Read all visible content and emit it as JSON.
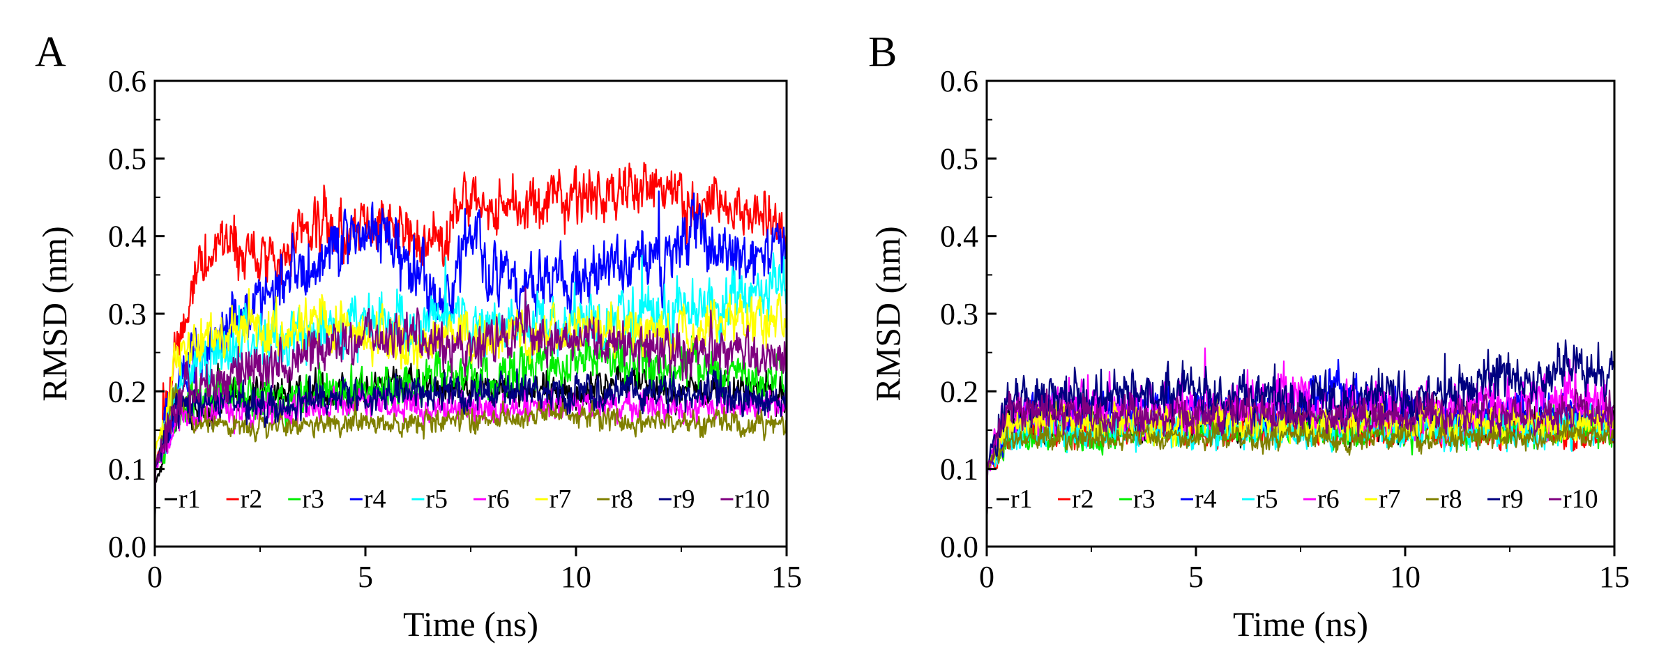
{
  "chart_data": [
    {
      "panel": "A",
      "type": "line",
      "xlabel": "Time (ns)",
      "ylabel": "RMSD (nm)",
      "xlim": [
        0,
        15
      ],
      "ylim": [
        0.0,
        0.6
      ],
      "xticks": [
        0,
        5,
        10,
        15
      ],
      "yticks": [
        0.0,
        0.1,
        0.2,
        0.3,
        0.4,
        0.5,
        0.6
      ],
      "ytick_labels": [
        "0.0",
        "0.1",
        "0.2",
        "0.3",
        "0.4",
        "0.5",
        "0.6"
      ],
      "legend_position": "bottom",
      "series": [
        {
          "name": "r1",
          "color": "#000000",
          "x": [
            0,
            0.5,
            1,
            2,
            3,
            4,
            5,
            6,
            7,
            8,
            9,
            10,
            11,
            12,
            13,
            14,
            15
          ],
          "values": [
            0.08,
            0.17,
            0.18,
            0.19,
            0.2,
            0.2,
            0.2,
            0.21,
            0.2,
            0.21,
            0.2,
            0.2,
            0.21,
            0.2,
            0.2,
            0.2,
            0.2
          ],
          "noise": 0.03
        },
        {
          "name": "r2",
          "color": "#ff0000",
          "x": [
            0,
            0.5,
            1,
            1.5,
            2,
            3,
            4,
            5,
            6,
            7,
            7.3,
            8,
            9,
            10,
            11,
            12,
            13,
            14,
            15
          ],
          "values": [
            0.1,
            0.25,
            0.36,
            0.4,
            0.38,
            0.38,
            0.42,
            0.41,
            0.4,
            0.39,
            0.45,
            0.44,
            0.44,
            0.45,
            0.46,
            0.46,
            0.44,
            0.44,
            0.42
          ],
          "noise": 0.045
        },
        {
          "name": "r3",
          "color": "#00ee00",
          "x": [
            0,
            0.5,
            1,
            2,
            3,
            4,
            5,
            6,
            7,
            8,
            9,
            10,
            11,
            12,
            13,
            14,
            15
          ],
          "values": [
            0.1,
            0.18,
            0.19,
            0.19,
            0.19,
            0.2,
            0.2,
            0.21,
            0.22,
            0.22,
            0.23,
            0.24,
            0.24,
            0.23,
            0.23,
            0.22,
            0.21
          ],
          "noise": 0.04
        },
        {
          "name": "r4",
          "color": "#0000ff",
          "x": [
            0,
            0.5,
            1,
            2,
            3,
            4,
            5,
            5.5,
            6,
            7,
            7.5,
            8,
            9,
            10,
            11,
            12,
            12.8,
            14,
            15
          ],
          "values": [
            0.1,
            0.2,
            0.25,
            0.3,
            0.34,
            0.38,
            0.4,
            0.41,
            0.36,
            0.32,
            0.41,
            0.35,
            0.34,
            0.35,
            0.36,
            0.36,
            0.4,
            0.37,
            0.38
          ],
          "noise": 0.05
        },
        {
          "name": "r5",
          "color": "#00ffff",
          "x": [
            0,
            0.5,
            1,
            2,
            3,
            4,
            5,
            6,
            7,
            8,
            9,
            10,
            11,
            12,
            13,
            14,
            15
          ],
          "values": [
            0.1,
            0.2,
            0.23,
            0.26,
            0.27,
            0.28,
            0.29,
            0.29,
            0.29,
            0.28,
            0.29,
            0.28,
            0.3,
            0.3,
            0.31,
            0.32,
            0.34
          ],
          "noise": 0.045
        },
        {
          "name": "r6",
          "color": "#ff00ff",
          "x": [
            0,
            0.5,
            1,
            2,
            3,
            4,
            5,
            6,
            7,
            8,
            9,
            10,
            11,
            12,
            13,
            14,
            15
          ],
          "values": [
            0.1,
            0.16,
            0.17,
            0.17,
            0.18,
            0.18,
            0.19,
            0.18,
            0.18,
            0.18,
            0.18,
            0.18,
            0.18,
            0.18,
            0.18,
            0.18,
            0.18
          ],
          "noise": 0.025
        },
        {
          "name": "r7",
          "color": "#ffff00",
          "x": [
            0,
            0.5,
            1,
            2,
            3,
            4,
            5,
            6,
            7,
            8,
            9,
            10,
            11,
            12,
            13,
            14,
            15
          ],
          "values": [
            0.12,
            0.24,
            0.27,
            0.28,
            0.27,
            0.3,
            0.27,
            0.26,
            0.27,
            0.27,
            0.27,
            0.28,
            0.28,
            0.28,
            0.28,
            0.29,
            0.28
          ],
          "noise": 0.04
        },
        {
          "name": "r8",
          "color": "#808000",
          "x": [
            0,
            0.5,
            1,
            2,
            3,
            4,
            5,
            6,
            7,
            8,
            9,
            10,
            11,
            12,
            13,
            14,
            15
          ],
          "values": [
            0.1,
            0.2,
            0.16,
            0.15,
            0.155,
            0.155,
            0.16,
            0.16,
            0.165,
            0.165,
            0.165,
            0.17,
            0.16,
            0.16,
            0.16,
            0.16,
            0.16
          ],
          "noise": 0.02
        },
        {
          "name": "r9",
          "color": "#000080",
          "x": [
            0,
            0.5,
            1,
            2,
            3,
            4,
            5,
            6,
            7,
            8,
            9,
            10,
            11,
            12,
            13,
            14,
            15
          ],
          "values": [
            0.1,
            0.17,
            0.18,
            0.19,
            0.18,
            0.19,
            0.19,
            0.2,
            0.2,
            0.19,
            0.2,
            0.2,
            0.2,
            0.2,
            0.2,
            0.19,
            0.19
          ],
          "noise": 0.03
        },
        {
          "name": "r10",
          "color": "#800080",
          "x": [
            0,
            0.5,
            1,
            2,
            3,
            4,
            5,
            6,
            7,
            8,
            9,
            10,
            11,
            12,
            13,
            14,
            15
          ],
          "values": [
            0.1,
            0.19,
            0.2,
            0.22,
            0.24,
            0.25,
            0.27,
            0.27,
            0.26,
            0.27,
            0.27,
            0.27,
            0.26,
            0.25,
            0.25,
            0.25,
            0.24
          ],
          "noise": 0.04
        }
      ]
    },
    {
      "panel": "B",
      "type": "line",
      "xlabel": "Time (ns)",
      "ylabel": "RMSD (nm)",
      "xlim": [
        0,
        15
      ],
      "ylim": [
        0.0,
        0.6
      ],
      "xticks": [
        0,
        5,
        10,
        15
      ],
      "yticks": [
        0.0,
        0.1,
        0.2,
        0.3,
        0.4,
        0.5,
        0.6
      ],
      "ytick_labels": [
        "0.0",
        "0.1",
        "0.2",
        "0.3",
        "0.4",
        "0.5",
        "0.6"
      ],
      "legend_position": "bottom",
      "series": [
        {
          "name": "r1",
          "color": "#000000",
          "x": [
            0,
            0.5,
            1,
            2,
            3,
            4,
            5,
            6,
            7,
            8,
            9,
            10,
            11,
            12,
            13,
            14,
            15
          ],
          "values": [
            0.1,
            0.16,
            0.16,
            0.16,
            0.16,
            0.16,
            0.16,
            0.16,
            0.16,
            0.16,
            0.16,
            0.16,
            0.16,
            0.16,
            0.16,
            0.16,
            0.16
          ],
          "noise": 0.03
        },
        {
          "name": "r2",
          "color": "#ff0000",
          "x": [
            0,
            0.5,
            1,
            2,
            3,
            4,
            5,
            6,
            7,
            8,
            9,
            10,
            11,
            12,
            13,
            14,
            15
          ],
          "values": [
            0.1,
            0.14,
            0.15,
            0.15,
            0.15,
            0.15,
            0.15,
            0.15,
            0.15,
            0.15,
            0.15,
            0.15,
            0.15,
            0.15,
            0.15,
            0.14,
            0.14
          ],
          "noise": 0.025
        },
        {
          "name": "r3",
          "color": "#00ee00",
          "x": [
            0,
            0.5,
            1,
            2,
            3,
            4,
            5,
            6,
            7,
            8,
            9,
            10,
            11,
            12,
            13,
            14,
            15
          ],
          "values": [
            0.1,
            0.14,
            0.14,
            0.14,
            0.14,
            0.15,
            0.15,
            0.15,
            0.15,
            0.15,
            0.15,
            0.15,
            0.15,
            0.15,
            0.15,
            0.15,
            0.15
          ],
          "noise": 0.025
        },
        {
          "name": "r4",
          "color": "#0000ff",
          "x": [
            0,
            0.5,
            1,
            2,
            3,
            4,
            5,
            6,
            7,
            8,
            8.2,
            9,
            10,
            11,
            12,
            13,
            14,
            15
          ],
          "values": [
            0.1,
            0.16,
            0.17,
            0.17,
            0.17,
            0.17,
            0.17,
            0.17,
            0.17,
            0.19,
            0.22,
            0.18,
            0.17,
            0.17,
            0.17,
            0.17,
            0.17,
            0.17
          ],
          "noise": 0.035
        },
        {
          "name": "r5",
          "color": "#00ffff",
          "x": [
            0,
            0.5,
            1,
            2,
            3,
            4,
            5,
            6,
            7,
            8,
            9,
            10,
            11,
            12,
            13,
            14,
            15
          ],
          "values": [
            0.1,
            0.15,
            0.15,
            0.15,
            0.15,
            0.15,
            0.15,
            0.15,
            0.15,
            0.15,
            0.15,
            0.15,
            0.15,
            0.15,
            0.15,
            0.16,
            0.16
          ],
          "noise": 0.03
        },
        {
          "name": "r6",
          "color": "#ff00ff",
          "x": [
            0,
            0.5,
            1,
            2,
            3,
            4,
            5,
            6,
            7,
            8,
            9,
            10,
            11,
            12,
            13,
            14,
            15
          ],
          "values": [
            0.1,
            0.17,
            0.18,
            0.18,
            0.18,
            0.18,
            0.18,
            0.18,
            0.19,
            0.18,
            0.18,
            0.18,
            0.18,
            0.18,
            0.18,
            0.2,
            0.17
          ],
          "noise": 0.045
        },
        {
          "name": "r7",
          "color": "#ffff00",
          "x": [
            0,
            0.5,
            1,
            2,
            3,
            4,
            5,
            6,
            7,
            8,
            9,
            10,
            11,
            12,
            13,
            14,
            15
          ],
          "values": [
            0.1,
            0.15,
            0.16,
            0.16,
            0.16,
            0.16,
            0.16,
            0.16,
            0.16,
            0.16,
            0.16,
            0.16,
            0.16,
            0.16,
            0.16,
            0.16,
            0.16
          ],
          "noise": 0.03
        },
        {
          "name": "r8",
          "color": "#808000",
          "x": [
            0,
            0.5,
            1,
            2,
            3,
            4,
            5,
            6,
            7,
            8,
            9,
            10,
            11,
            12,
            13,
            14,
            15
          ],
          "values": [
            0.1,
            0.14,
            0.14,
            0.14,
            0.14,
            0.14,
            0.14,
            0.14,
            0.14,
            0.14,
            0.14,
            0.14,
            0.14,
            0.14,
            0.14,
            0.14,
            0.14
          ],
          "noise": 0.02
        },
        {
          "name": "r9",
          "color": "#000080",
          "x": [
            0,
            0.5,
            1,
            2,
            3,
            4,
            5,
            6,
            7,
            8,
            9,
            10,
            11,
            12,
            13,
            14,
            15
          ],
          "values": [
            0.1,
            0.18,
            0.19,
            0.19,
            0.2,
            0.2,
            0.2,
            0.19,
            0.19,
            0.19,
            0.19,
            0.19,
            0.2,
            0.21,
            0.22,
            0.24,
            0.22
          ],
          "noise": 0.04
        },
        {
          "name": "r10",
          "color": "#800080",
          "x": [
            0,
            0.5,
            1,
            2,
            3,
            4,
            5,
            6,
            7,
            8,
            9,
            10,
            11,
            12,
            13,
            14,
            15
          ],
          "values": [
            0.1,
            0.17,
            0.17,
            0.17,
            0.17,
            0.17,
            0.17,
            0.17,
            0.17,
            0.17,
            0.17,
            0.17,
            0.17,
            0.17,
            0.17,
            0.17,
            0.17
          ],
          "noise": 0.03
        }
      ]
    }
  ]
}
